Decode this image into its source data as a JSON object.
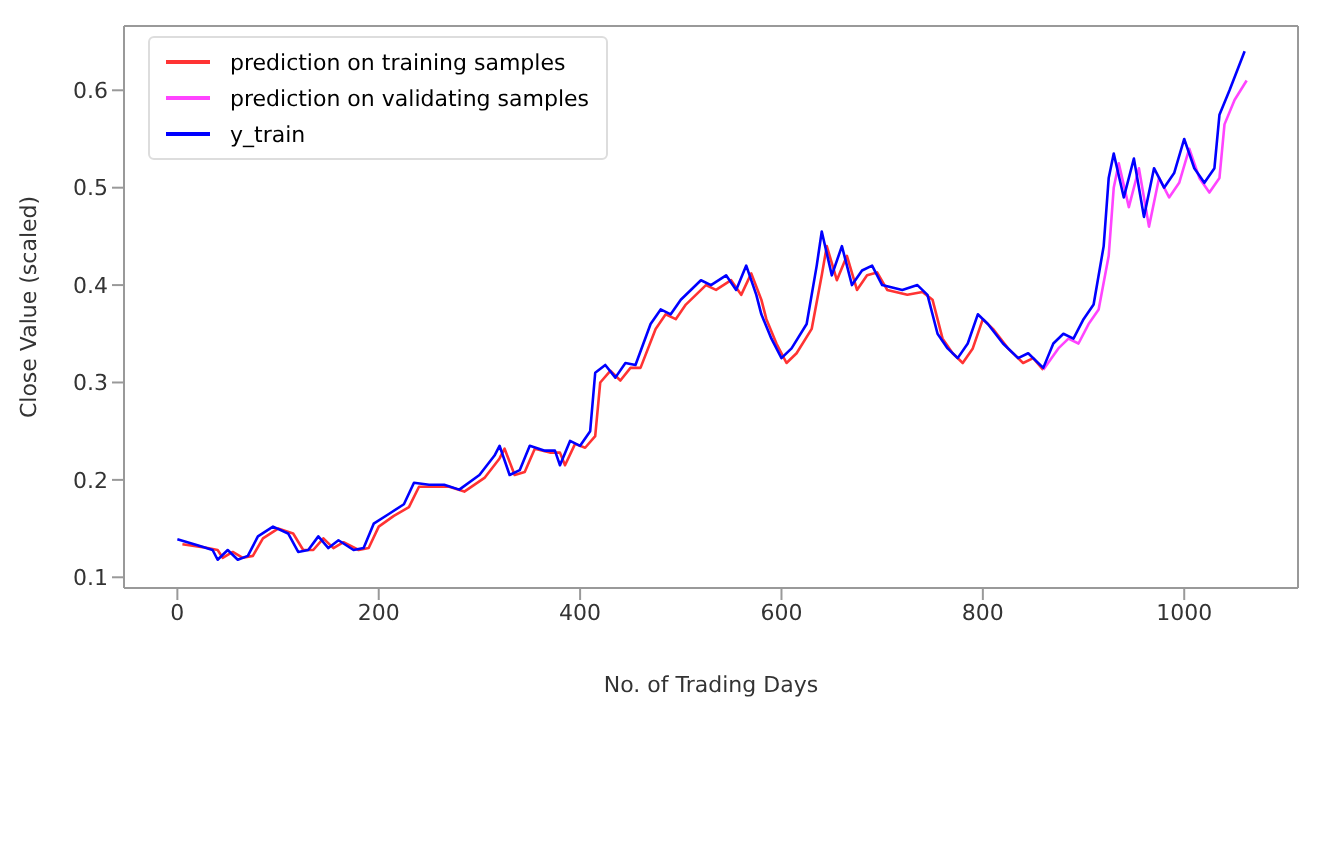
{
  "chart_data": {
    "type": "line",
    "xlabel": "No. of Trading Days",
    "ylabel": "Close Value (scaled)",
    "xlim": [
      -53,
      1113
    ],
    "ylim": [
      0.089,
      0.666
    ],
    "xticks": [
      0,
      200,
      400,
      600,
      800,
      1000
    ],
    "yticks": [
      0.1,
      0.2,
      0.3,
      0.4,
      0.5,
      0.6
    ],
    "grid": false,
    "legend": "top left",
    "marker": "none",
    "line_style": "solid",
    "series": [
      {
        "name": "prediction on training samples",
        "color": "#ff3333",
        "x": [
          5,
          25,
          40,
          45,
          55,
          65,
          75,
          85,
          100,
          115,
          125,
          135,
          145,
          155,
          165,
          180,
          190,
          200,
          215,
          230,
          240,
          255,
          270,
          285,
          305,
          320,
          325,
          335,
          345,
          355,
          370,
          380,
          385,
          395,
          405,
          415,
          420,
          430,
          440,
          450,
          460,
          475,
          485,
          495,
          505,
          525,
          535,
          550,
          560,
          570,
          580,
          585,
          595,
          605,
          615,
          630,
          640,
          645,
          655,
          665,
          675,
          685,
          695,
          705,
          725,
          740,
          750,
          760,
          770,
          780,
          790,
          800,
          810,
          825,
          840,
          850,
          860
        ],
        "values": [
          0.134,
          0.131,
          0.128,
          0.12,
          0.126,
          0.12,
          0.122,
          0.14,
          0.15,
          0.145,
          0.128,
          0.128,
          0.14,
          0.13,
          0.136,
          0.128,
          0.13,
          0.152,
          0.163,
          0.172,
          0.193,
          0.193,
          0.193,
          0.188,
          0.202,
          0.222,
          0.232,
          0.205,
          0.208,
          0.232,
          0.228,
          0.228,
          0.215,
          0.237,
          0.233,
          0.245,
          0.3,
          0.312,
          0.302,
          0.315,
          0.315,
          0.355,
          0.37,
          0.365,
          0.38,
          0.4,
          0.395,
          0.405,
          0.39,
          0.412,
          0.385,
          0.365,
          0.34,
          0.32,
          0.33,
          0.355,
          0.41,
          0.44,
          0.405,
          0.43,
          0.395,
          0.41,
          0.413,
          0.395,
          0.39,
          0.393,
          0.385,
          0.345,
          0.33,
          0.32,
          0.335,
          0.365,
          0.355,
          0.335,
          0.32,
          0.325,
          0.313
        ]
      },
      {
        "name": "prediction on validating samples",
        "color": "#ff44ff",
        "x": [
          860,
          875,
          885,
          895,
          905,
          915,
          925,
          930,
          935,
          945,
          955,
          965,
          975,
          985,
          995,
          1005,
          1015,
          1025,
          1035,
          1040,
          1050,
          1062
        ],
        "values": [
          0.313,
          0.335,
          0.345,
          0.34,
          0.36,
          0.375,
          0.43,
          0.5,
          0.525,
          0.48,
          0.52,
          0.46,
          0.51,
          0.49,
          0.505,
          0.54,
          0.51,
          0.495,
          0.51,
          0.565,
          0.59,
          0.61
        ]
      },
      {
        "name": "y_train",
        "color": "#0000ff",
        "x": [
          0,
          20,
          35,
          40,
          50,
          60,
          70,
          80,
          95,
          110,
          120,
          130,
          140,
          150,
          160,
          175,
          185,
          195,
          210,
          225,
          235,
          250,
          265,
          280,
          300,
          315,
          320,
          330,
          340,
          350,
          365,
          375,
          380,
          390,
          400,
          410,
          415,
          425,
          435,
          445,
          455,
          470,
          480,
          490,
          500,
          520,
          530,
          545,
          555,
          565,
          575,
          580,
          590,
          600,
          610,
          625,
          635,
          640,
          650,
          660,
          670,
          680,
          690,
          700,
          720,
          735,
          745,
          755,
          765,
          775,
          785,
          795,
          805,
          820,
          835,
          845,
          860,
          870,
          880,
          890,
          900,
          910,
          920,
          925,
          930,
          940,
          950,
          960,
          970,
          980,
          990,
          1000,
          1010,
          1020,
          1030,
          1035,
          1045,
          1060
        ],
        "values": [
          0.139,
          0.133,
          0.128,
          0.118,
          0.128,
          0.118,
          0.122,
          0.142,
          0.152,
          0.145,
          0.126,
          0.128,
          0.142,
          0.13,
          0.138,
          0.128,
          0.13,
          0.155,
          0.165,
          0.175,
          0.197,
          0.195,
          0.195,
          0.19,
          0.205,
          0.225,
          0.235,
          0.205,
          0.21,
          0.235,
          0.23,
          0.23,
          0.215,
          0.24,
          0.235,
          0.25,
          0.31,
          0.318,
          0.305,
          0.32,
          0.318,
          0.36,
          0.375,
          0.37,
          0.385,
          0.405,
          0.4,
          0.41,
          0.395,
          0.42,
          0.39,
          0.37,
          0.345,
          0.325,
          0.335,
          0.36,
          0.42,
          0.455,
          0.41,
          0.44,
          0.4,
          0.415,
          0.42,
          0.4,
          0.395,
          0.4,
          0.39,
          0.35,
          0.335,
          0.325,
          0.34,
          0.37,
          0.36,
          0.34,
          0.325,
          0.33,
          0.315,
          0.34,
          0.35,
          0.345,
          0.365,
          0.38,
          0.44,
          0.51,
          0.535,
          0.49,
          0.53,
          0.47,
          0.52,
          0.5,
          0.515,
          0.55,
          0.52,
          0.505,
          0.52,
          0.575,
          0.6,
          0.64
        ]
      }
    ]
  }
}
